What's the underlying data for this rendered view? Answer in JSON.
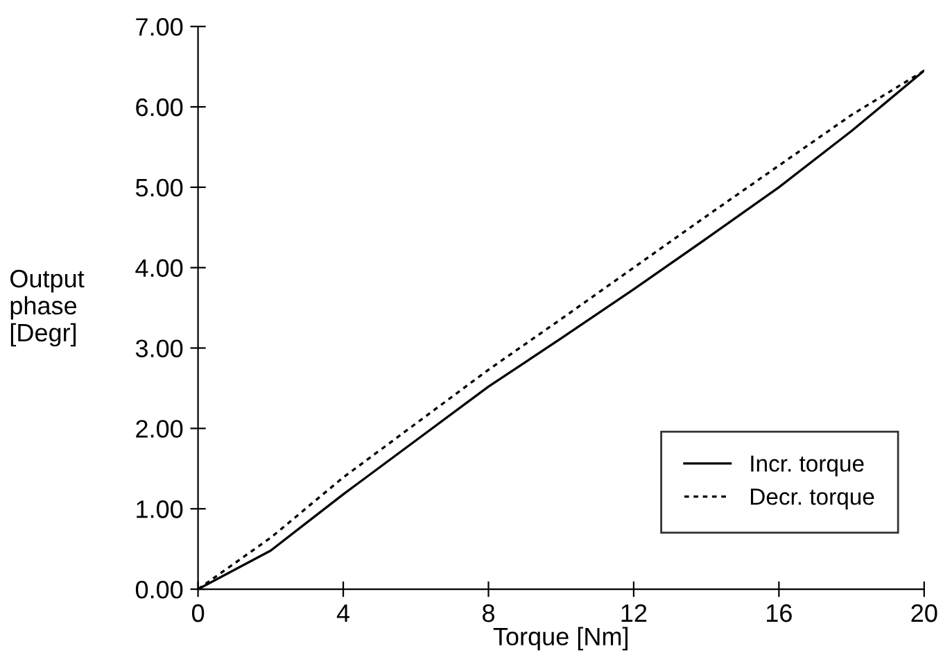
{
  "chart_data": {
    "type": "line",
    "xlabel": "Torque [Nm]",
    "ylabel": "Output\nphase\n[Degr]",
    "x": [
      0,
      2,
      4,
      6,
      8,
      10,
      12,
      14,
      16,
      18,
      20
    ],
    "series": [
      {
        "name": "Incr. torque",
        "color": "#000000",
        "line_style": "solid",
        "values": [
          0,
          0.48,
          1.18,
          1.85,
          2.52,
          3.12,
          3.73,
          4.36,
          5.0,
          5.7,
          6.45
        ]
      },
      {
        "name": "Decr. torque",
        "color": "#000000",
        "line_style": "dotted",
        "values": [
          0,
          0.64,
          1.39,
          2.06,
          2.73,
          3.36,
          4.0,
          4.64,
          5.27,
          5.9,
          6.45
        ]
      }
    ],
    "xlim": [
      0,
      20
    ],
    "xticks": [
      0,
      4,
      8,
      12,
      16,
      20
    ],
    "ylim": [
      0,
      7
    ],
    "yticks": [
      {
        "value": 0,
        "label": "0.00"
      },
      {
        "value": 1,
        "label": "1.00"
      },
      {
        "value": 2,
        "label": "2.00"
      },
      {
        "value": 3,
        "label": "3.00"
      },
      {
        "value": 4,
        "label": "4.00"
      },
      {
        "value": 5,
        "label": "5.00"
      },
      {
        "value": 6,
        "label": "6.00"
      },
      {
        "value": 7,
        "label": "7.00"
      }
    ],
    "grid": false,
    "legend": "bottom right",
    "marker": "none"
  }
}
